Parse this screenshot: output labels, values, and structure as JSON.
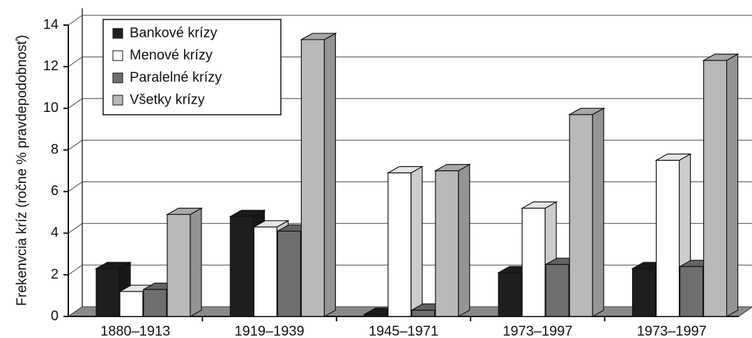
{
  "chart_data": {
    "type": "bar3d",
    "y_label": "Frekenvcia kríz (ročne % pravdepodobnosť)",
    "categories": [
      "1880–1913",
      "1919–1939",
      "1945–1971",
      "1973–1997",
      "1973–1997"
    ],
    "series": [
      {
        "name": "Bankové krízy",
        "color": "#1e1e1e",
        "values": [
          2.3,
          4.8,
          0.1,
          2.1,
          2.3
        ]
      },
      {
        "name": "Menové krízy",
        "color": "#ffffff",
        "values": [
          1.2,
          4.3,
          6.9,
          5.2,
          7.5
        ]
      },
      {
        "name": "Paralelné krízy",
        "color": "#6e6e6e",
        "values": [
          1.3,
          4.1,
          0.3,
          2.5,
          2.4
        ]
      },
      {
        "name": "Všetky krízy",
        "color": "#b9b9b9",
        "values": [
          4.9,
          13.3,
          7.0,
          9.7,
          12.3
        ]
      }
    ],
    "ylim": [
      0,
      14
    ],
    "yticks": [
      0,
      2,
      4,
      6,
      8,
      10,
      12,
      14
    ],
    "grid": true,
    "legend": "top-left"
  }
}
